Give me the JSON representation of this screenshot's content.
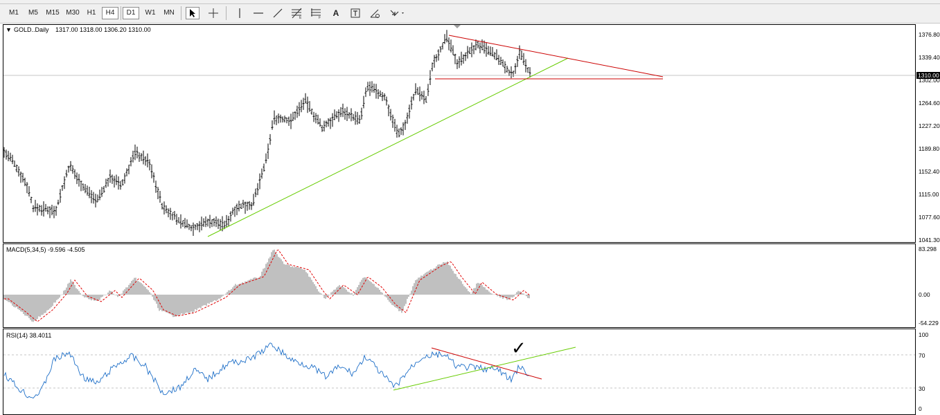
{
  "toolbar": {
    "timeframes": [
      "M1",
      "M5",
      "M15",
      "M30",
      "H1",
      "H4",
      "D1",
      "W1",
      "MN"
    ],
    "selected": [
      "H4",
      "D1"
    ],
    "tools": [
      "cursor-icon",
      "crosshair-icon",
      "vertical-line-icon",
      "horizontal-line-icon",
      "trend-line-icon",
      "fibonacci-icon",
      "text-icon",
      "label-icon",
      "arrows-icon"
    ],
    "text_tool_label": "A"
  },
  "main": {
    "symbol": "GOLD..Daily",
    "ohlc": "1317.00 1318.00 1306.20 1310.00",
    "y_labels": [
      "1376.80",
      "1339.40",
      "1302.00",
      "1264.60",
      "1227.20",
      "1189.80",
      "1152.40",
      "1115.00",
      "1077.60",
      "1041.30"
    ],
    "current_price_label": "1310.00",
    "current_price": 1310.0
  },
  "macd": {
    "label": "MACD(5,34,5) -9.596 -4.505",
    "y_labels": [
      "83.298",
      "0.00",
      "-54.229"
    ]
  },
  "rsi": {
    "label": "RSI(14) 38.4011",
    "y_labels": [
      "100",
      "70",
      "30",
      "0"
    ],
    "levels": [
      70,
      30
    ]
  },
  "colors": {
    "candle": "#000000",
    "support_trend": "#66cc00",
    "resistance_trend": "#cc0000",
    "macd_hist": "#c0c0c0",
    "macd_signal": "#e00000",
    "rsi_line": "#1e6fc8"
  },
  "annotation": "✓"
}
